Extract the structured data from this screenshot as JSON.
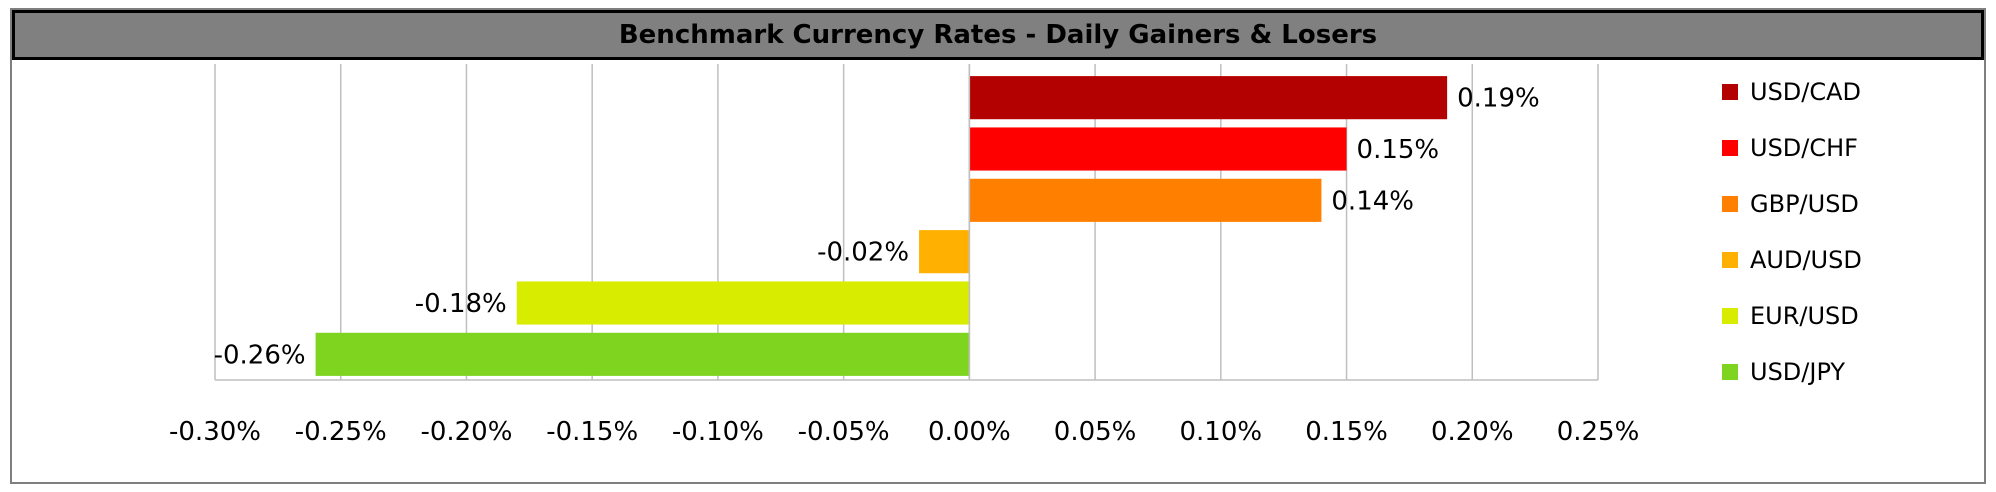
{
  "title": "Benchmark Currency Rates - Daily Gainers & Losers",
  "chart_data": {
    "type": "bar",
    "orientation": "horizontal",
    "categories": [
      "USD/CAD",
      "USD/CHF",
      "GBP/USD",
      "AUD/USD",
      "EUR/USD",
      "USD/JPY"
    ],
    "values": [
      0.19,
      0.15,
      0.14,
      -0.02,
      -0.18,
      -0.26
    ],
    "data_labels": [
      "0.19%",
      "0.15%",
      "0.14%",
      "-0.02%",
      "-0.18%",
      "-0.26%"
    ],
    "colors": [
      "#b30000",
      "#ff0000",
      "#ff7f00",
      "#ffb000",
      "#d8ec00",
      "#7fd420"
    ],
    "xlim": [
      -0.3,
      0.25
    ],
    "xticks": [
      -0.3,
      -0.25,
      -0.2,
      -0.15,
      -0.1,
      -0.05,
      0.0,
      0.05,
      0.1,
      0.15,
      0.2,
      0.25
    ],
    "xtick_labels": [
      "-0.30%",
      "-0.25%",
      "-0.20%",
      "-0.15%",
      "-0.10%",
      "-0.05%",
      "0.00%",
      "0.05%",
      "0.10%",
      "0.15%",
      "0.20%",
      "0.25%"
    ],
    "grid": "vertical",
    "legend_position": "right"
  }
}
